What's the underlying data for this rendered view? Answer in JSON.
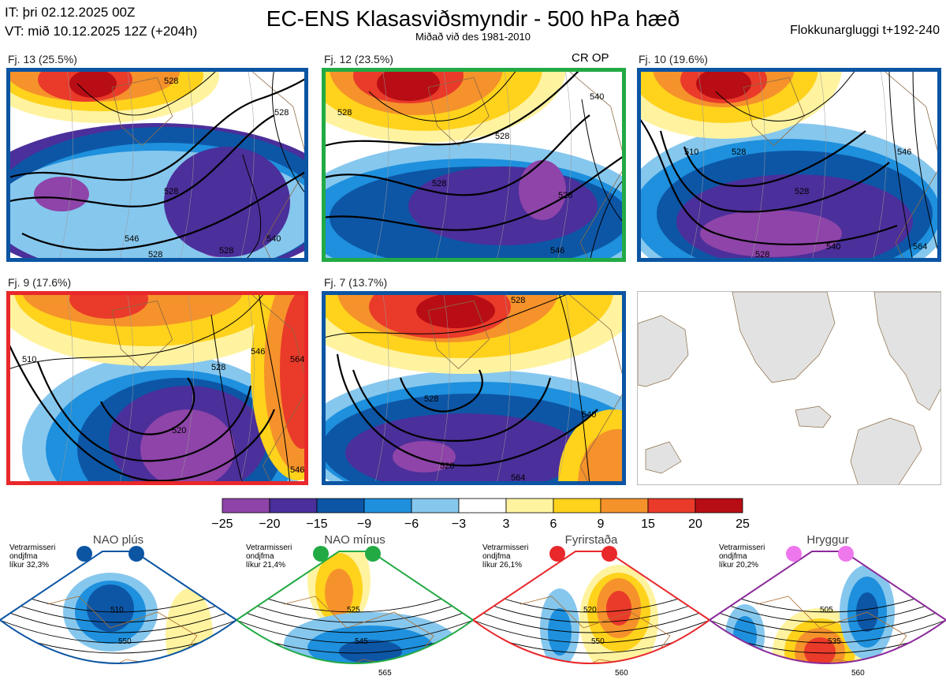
{
  "header": {
    "it_line": "IT: þri 02.12.2025 00Z",
    "vt_line": "VT: mið 10.12.2025 12Z  (+204h)",
    "title": "EC-ENS Klasasviðsmyndir - 500 hPa hæð",
    "subtitle": "Miðað við des 1981-2010",
    "window": "Flokkunargluggi t+192-240"
  },
  "panels": [
    {
      "label": "Fj. 13 (25.5%)",
      "frame_color": "#0b55a3",
      "contours": [
        "528",
        "528",
        "546",
        "528",
        "528",
        "540",
        "528"
      ]
    },
    {
      "label": "Fj. 12 (23.5%)",
      "frame_color": "#22aa44",
      "tag": "CR OP",
      "contours": [
        "528",
        "528",
        "528",
        "540",
        "528",
        "546"
      ]
    },
    {
      "label": "Fj. 10 (19.6%)",
      "frame_color": "#0b55a3",
      "contours": [
        "510",
        "528",
        "528",
        "546",
        "528",
        "540",
        "564"
      ]
    },
    {
      "label": "Fj. 9 (17.6%)",
      "frame_color": "#e8282b",
      "contours": [
        "510",
        "520",
        "528",
        "546",
        "564",
        "546"
      ]
    },
    {
      "label": "Fj. 7 (13.7%)",
      "frame_color": "#0b55a3",
      "contours": [
        "528",
        "528",
        "540",
        "528",
        "564"
      ]
    }
  ],
  "empty_panel": {
    "frame_color": "#cccccc"
  },
  "colorbar": {
    "ticks": [
      "−25",
      "−20",
      "−15",
      "−9",
      "−6",
      "−3",
      "3",
      "6",
      "9",
      "15",
      "20",
      "25"
    ],
    "colors": [
      "#8e44a8",
      "#4b2f9a",
      "#0d56a6",
      "#1e90dd",
      "#86c7ee",
      "#ffffff",
      "#fff3a0",
      "#ffd21c",
      "#f5922b",
      "#ea3a2a",
      "#b80d14"
    ]
  },
  "regimes": [
    {
      "name": "NAO plús",
      "note": [
        "Vetrarmisseri",
        "ondjfma",
        "líkur 32,3%"
      ],
      "color": "#0b55a3",
      "contours": [
        "510",
        "550"
      ]
    },
    {
      "name": "NAO mínus",
      "note": [
        "Vetrarmisseri",
        "ondjfma",
        "líkur 21,4%"
      ],
      "color": "#22aa44",
      "contours": [
        "525",
        "545",
        "565"
      ]
    },
    {
      "name": "Fyrirstaða",
      "note": [
        "Vetrarmisseri",
        "ondjfma",
        "líkur 26,1%"
      ],
      "color": "#e8282b",
      "contours": [
        "520",
        "550",
        "560"
      ]
    },
    {
      "name": "Hryggur",
      "note": [
        "Vetrarmisseri",
        "ondjfma",
        "líkur 20,2%"
      ],
      "color": "#8b2a9a",
      "dot_color": "#ee77ee",
      "contours": [
        "505",
        "535",
        "560"
      ]
    }
  ]
}
